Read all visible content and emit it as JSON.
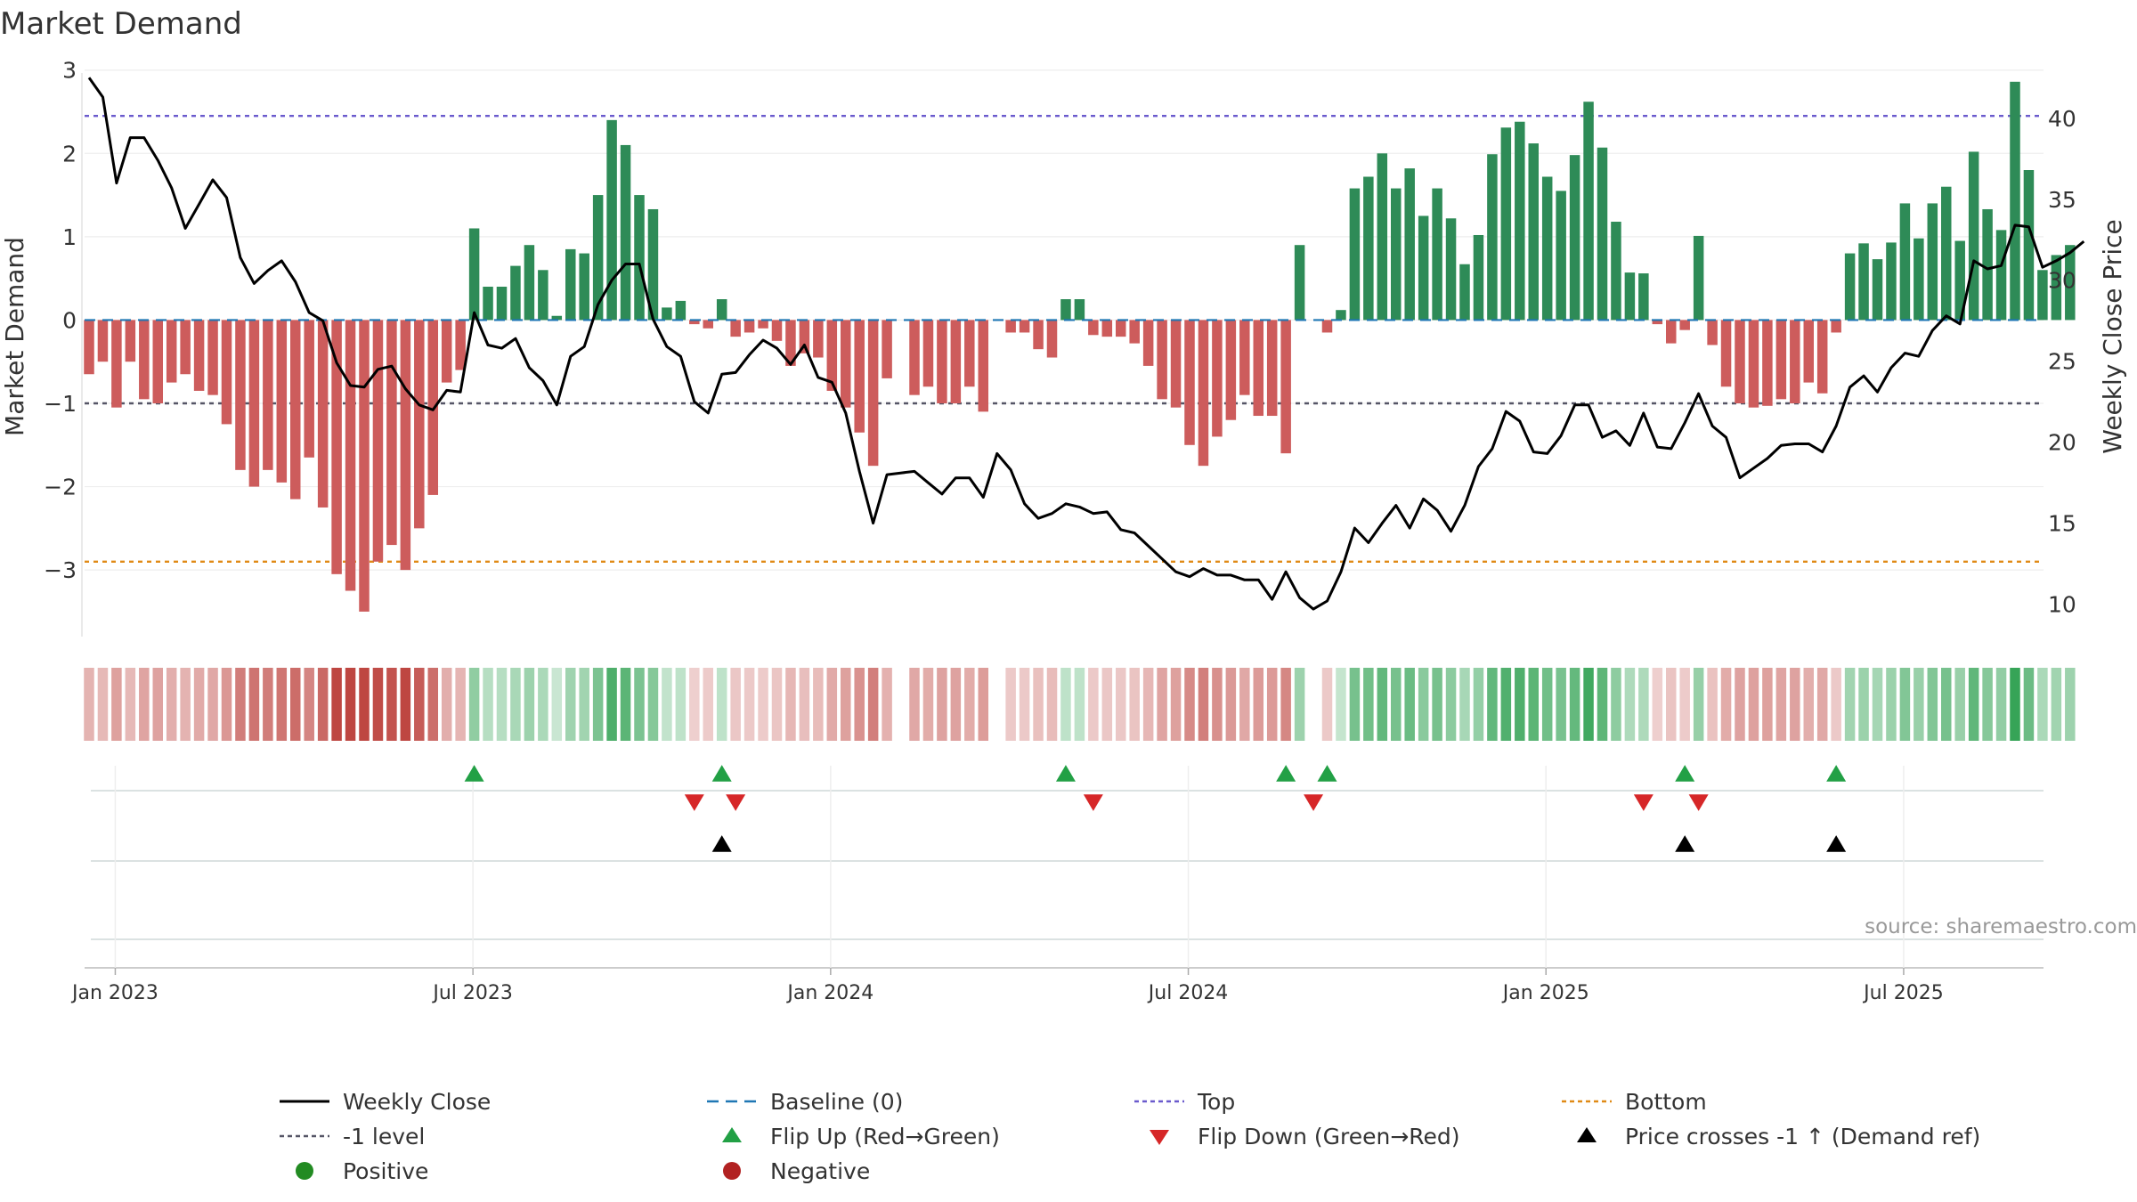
{
  "chart_data": {
    "type": "bar+line",
    "title": "Market Demand",
    "ylabel_left": "Market Demand",
    "ylabel_right": "Weekly Close Price",
    "ylim_left": [
      -3.8,
      3.2
    ],
    "ylim_right": [
      8,
      44
    ],
    "yticks_left": [
      {
        "v": 3,
        "label": "3"
      },
      {
        "v": 2,
        "label": "2"
      },
      {
        "v": 1,
        "label": "1"
      },
      {
        "v": 0,
        "label": "0"
      },
      {
        "v": -1,
        "label": "−1"
      },
      {
        "v": -2,
        "label": "−2"
      },
      {
        "v": -3,
        "label": "−3"
      }
    ],
    "yticks_right": [
      {
        "v": 40,
        "label": "40"
      },
      {
        "v": 35,
        "label": "35"
      },
      {
        "v": 30,
        "label": "30"
      },
      {
        "v": 25,
        "label": "25"
      },
      {
        "v": 20,
        "label": "20"
      },
      {
        "v": 15,
        "label": "15"
      },
      {
        "v": 10,
        "label": "10"
      }
    ],
    "xticks": [
      {
        "i": 1,
        "label": "Jan 2023"
      },
      {
        "i": 27,
        "label": "Jul 2023"
      },
      {
        "i": 53,
        "label": "Jan 2024"
      },
      {
        "i": 79,
        "label": "Jul 2024"
      },
      {
        "i": 105,
        "label": "Jan 2025"
      },
      {
        "i": 131,
        "label": "Jul 2025"
      }
    ],
    "x_start": "2022-12-26",
    "x_interval": "weekly",
    "levels": {
      "top": 2.45,
      "bottom": -2.9,
      "minus_one": -1,
      "baseline": 0
    },
    "demand": [
      -0.65,
      -0.5,
      -1.05,
      -0.5,
      -0.95,
      -1.0,
      -0.75,
      -0.65,
      -0.85,
      -0.9,
      -1.25,
      -1.8,
      -2.0,
      -1.8,
      -1.95,
      -2.15,
      -1.65,
      -2.25,
      -3.05,
      -3.25,
      -3.5,
      -2.9,
      -2.7,
      -3.0,
      -2.5,
      -2.1,
      -0.75,
      -0.6,
      1.1,
      0.4,
      0.4,
      0.65,
      0.9,
      0.6,
      0.05,
      0.85,
      0.8,
      1.5,
      2.4,
      2.1,
      1.5,
      1.33,
      0.15,
      0.23,
      -0.05,
      -0.1,
      0.25,
      -0.2,
      -0.15,
      -0.1,
      -0.25,
      -0.55,
      -0.4,
      -0.45,
      -0.85,
      -1.05,
      -1.35,
      -1.75,
      -0.7,
      0.0,
      -0.9,
      -0.8,
      -1.0,
      -1.0,
      -0.8,
      -1.1,
      0.0,
      -0.15,
      -0.15,
      -0.35,
      -0.45,
      0.25,
      0.25,
      -0.18,
      -0.2,
      -0.2,
      -0.28,
      -0.55,
      -0.95,
      -1.05,
      -1.5,
      -1.75,
      -1.4,
      -1.2,
      -0.9,
      -1.15,
      -1.15,
      -1.6,
      0.9,
      0.0,
      -0.15,
      0.12,
      1.58,
      1.72,
      2.0,
      1.58,
      1.82,
      1.25,
      1.58,
      1.22,
      0.67,
      1.02,
      1.99,
      2.31,
      2.38,
      2.12,
      1.72,
      1.55,
      1.98,
      2.62,
      2.07,
      1.18,
      0.57,
      0.56,
      -0.05,
      -0.28,
      -0.12,
      1.01,
      -0.3,
      -0.8,
      -1.0,
      -1.05,
      -1.03,
      -0.95,
      -1.0,
      -0.75,
      -0.88,
      -0.15,
      0.8,
      0.92,
      0.73,
      0.93,
      1.4,
      0.98,
      1.4,
      1.6,
      0.95,
      2.02,
      1.33,
      1.08,
      2.86,
      1.8,
      0.6,
      0.78,
      0.9
    ],
    "close": [
      42.5,
      41.3,
      36.0,
      38.8,
      38.8,
      37.4,
      35.7,
      33.2,
      34.7,
      36.2,
      35.1,
      31.4,
      29.8,
      30.6,
      31.2,
      29.9,
      28.0,
      27.5,
      24.9,
      23.5,
      23.4,
      24.5,
      24.7,
      23.3,
      22.3,
      22.0,
      23.2,
      23.1,
      28.0,
      26.0,
      25.8,
      26.4,
      24.6,
      23.8,
      22.3,
      25.3,
      25.9,
      28.5,
      30.0,
      31.0,
      31.0,
      27.6,
      25.9,
      25.3,
      22.5,
      21.8,
      24.2,
      24.3,
      25.4,
      26.3,
      25.8,
      24.8,
      26.0,
      24.0,
      23.7,
      21.8,
      18.2,
      15.0,
      18.0,
      18.1,
      18.2,
      17.5,
      16.8,
      17.8,
      17.8,
      16.6,
      19.3,
      18.3,
      16.2,
      15.3,
      15.6,
      16.2,
      16.0,
      15.6,
      15.7,
      14.6,
      14.4,
      13.6,
      12.8,
      12.0,
      11.7,
      12.2,
      11.8,
      11.8,
      11.5,
      11.5,
      10.3,
      12.0,
      10.4,
      9.7,
      10.2,
      12.0,
      14.7,
      13.8,
      15.0,
      16.1,
      14.7,
      16.5,
      15.8,
      14.5,
      16.1,
      18.5,
      19.6,
      21.9,
      21.3,
      19.4,
      19.3,
      20.4,
      22.3,
      22.3,
      20.3,
      20.7,
      19.8,
      21.8,
      19.7,
      19.6,
      21.2,
      23.0,
      21.0,
      20.3,
      17.8,
      18.4,
      19.0,
      19.8,
      19.9,
      19.9,
      19.4,
      21.0,
      23.4,
      24.1,
      23.1,
      24.6,
      25.5,
      25.3,
      26.9,
      27.8,
      27.3,
      31.2,
      30.7,
      30.9,
      33.4,
      33.3,
      30.8,
      31.2,
      31.7,
      32.4
    ],
    "flip_up": [
      28,
      46,
      71,
      87,
      90,
      116,
      127
    ],
    "flip_down": [
      44,
      47,
      73,
      89,
      113,
      117
    ],
    "price_cross": [
      46,
      116,
      127
    ],
    "source": "source: sharemaestro.com",
    "legend": [
      {
        "key": "close",
        "label": "Weekly Close"
      },
      {
        "key": "baseline",
        "label": "Baseline (0)"
      },
      {
        "key": "top",
        "label": "Top"
      },
      {
        "key": "bottom",
        "label": "Bottom"
      },
      {
        "key": "minus1",
        "label": "-1 level"
      },
      {
        "key": "flipup",
        "label": "Flip Up (Red→Green)"
      },
      {
        "key": "flipdown",
        "label": "Flip Down (Green→Red)"
      },
      {
        "key": "cross",
        "label": "Price crosses -1 ↑ (Demand ref)"
      },
      {
        "key": "positive",
        "label": "Positive"
      },
      {
        "key": "negative",
        "label": "Negative"
      }
    ],
    "colors": {
      "pos_bar": "#2e8b57",
      "neg_bar": "#cd5c5c",
      "close": "#000000",
      "baseline": "#1f77b4",
      "top": "#6a5acd",
      "bottom": "#e08a16",
      "minus_one": "#555566",
      "flip_up": "#22a045",
      "flip_down": "#d62728",
      "cross": "#000000",
      "legend_positive": "#228b22",
      "legend_negative": "#b22222"
    }
  }
}
